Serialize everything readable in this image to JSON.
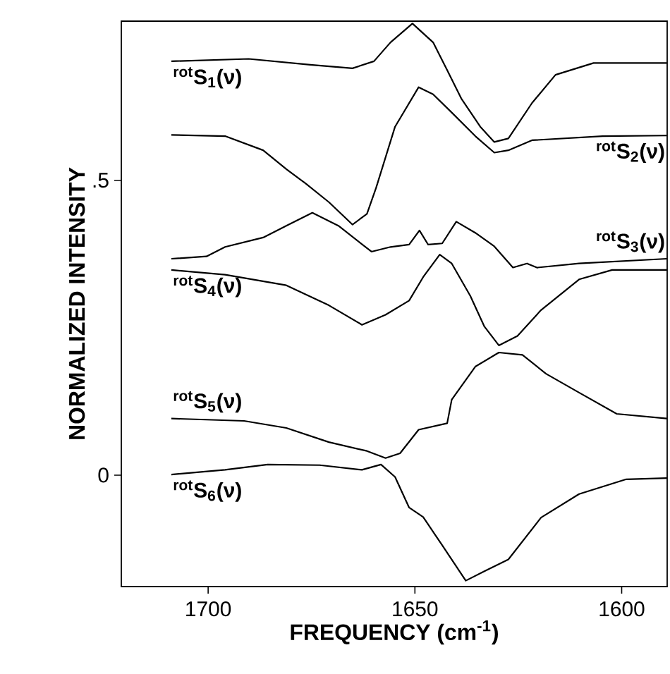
{
  "chart_data": {
    "type": "line",
    "xlabel": "FREQUENCY (cm$^{-1}$)",
    "ylabel": "NORMALIZED INTENSITY",
    "xlim": [
      1721,
      1589
    ],
    "xticks": [
      1700,
      1650,
      1600
    ],
    "ylim": [
      -0.189,
      0.77
    ],
    "yticks": [
      0,
      {
        "value": 0.5,
        "label": ".5"
      }
    ],
    "marker": "none",
    "line_style": "solid",
    "series": [
      {
        "name": "$^{rot}$S$_{1}$(ν)",
        "color": "#000000",
        "x": [
          1708.9,
          1690.2,
          1675.3,
          1665.1,
          1659.9,
          1655.9,
          1650.6,
          1645.6,
          1642.2,
          1638.8,
          1634.2,
          1630.8,
          1627.4,
          1621.7,
          1616.0,
          1606.8,
          1589.1
        ],
        "values": [
          0.702,
          0.706,
          0.696,
          0.69,
          0.702,
          0.734,
          0.766,
          0.734,
          0.687,
          0.639,
          0.591,
          0.565,
          0.571,
          0.631,
          0.679,
          0.699,
          0.699
        ]
      },
      {
        "name": "$^{rot}$S$_{2}$(ν)",
        "color": "#000000",
        "x": [
          1708.9,
          1695.9,
          1686.7,
          1681.1,
          1676.5,
          1670.8,
          1665.1,
          1661.6,
          1659.4,
          1654.8,
          1649.1,
          1645.6,
          1641.1,
          1635.4,
          1630.8,
          1627.4,
          1621.7,
          1604.6,
          1589.1
        ],
        "values": [
          0.577,
          0.575,
          0.551,
          0.519,
          0.495,
          0.463,
          0.425,
          0.443,
          0.487,
          0.591,
          0.658,
          0.646,
          0.615,
          0.575,
          0.547,
          0.551,
          0.568,
          0.575,
          0.576
        ]
      },
      {
        "name": "$^{rot}$S$_{3}$(ν)",
        "color": "#000000",
        "x": [
          1708.9,
          1700.4,
          1695.9,
          1686.7,
          1681.1,
          1674.8,
          1668.5,
          1660.5,
          1655.9,
          1651.4,
          1648.9,
          1646.8,
          1643.4,
          1640.0,
          1635.4,
          1630.8,
          1626.3,
          1622.9,
          1620.5,
          1610.3,
          1589.1
        ],
        "values": [
          0.367,
          0.371,
          0.387,
          0.403,
          0.423,
          0.445,
          0.423,
          0.379,
          0.387,
          0.391,
          0.415,
          0.391,
          0.393,
          0.43,
          0.411,
          0.388,
          0.352,
          0.359,
          0.352,
          0.359,
          0.367
        ]
      },
      {
        "name": "$^{rot}$S$_{4}$(ν)",
        "color": "#000000",
        "x": [
          1708.9,
          1695.9,
          1681.1,
          1670.8,
          1662.8,
          1657.1,
          1651.4,
          1648.0,
          1644.0,
          1641.1,
          1636.6,
          1633.2,
          1629.7,
          1625.2,
          1619.5,
          1610.3,
          1602.3,
          1589.1
        ],
        "values": [
          0.348,
          0.34,
          0.322,
          0.288,
          0.255,
          0.272,
          0.296,
          0.336,
          0.374,
          0.359,
          0.304,
          0.252,
          0.22,
          0.236,
          0.28,
          0.332,
          0.348,
          0.348
        ]
      },
      {
        "name": "$^{rot}$S$_{5}$(ν)",
        "color": "#000000",
        "x": [
          1708.9,
          1691.3,
          1681.1,
          1670.8,
          1661.6,
          1657.1,
          1653.6,
          1649.1,
          1642.2,
          1641.1,
          1635.4,
          1629.7,
          1624.0,
          1618.3,
          1610.3,
          1601.2,
          1589.1
        ],
        "values": [
          0.096,
          0.092,
          0.08,
          0.056,
          0.041,
          0.029,
          0.037,
          0.077,
          0.088,
          0.128,
          0.184,
          0.208,
          0.204,
          0.172,
          0.14,
          0.104,
          0.096
        ]
      },
      {
        "name": "$^{rot}$S$_{6}$(ν)",
        "color": "#000000",
        "x": [
          1708.9,
          1695.9,
          1685.6,
          1673.0,
          1662.8,
          1658.2,
          1654.8,
          1651.4,
          1648.0,
          1643.4,
          1637.7,
          1633.2,
          1627.4,
          1619.5,
          1610.3,
          1598.9,
          1589.1
        ],
        "values": [
          0.001,
          0.009,
          0.018,
          0.017,
          0.009,
          0.018,
          -0.003,
          -0.055,
          -0.071,
          -0.119,
          -0.179,
          -0.163,
          -0.143,
          -0.072,
          -0.032,
          -0.007,
          -0.005
        ]
      }
    ]
  }
}
